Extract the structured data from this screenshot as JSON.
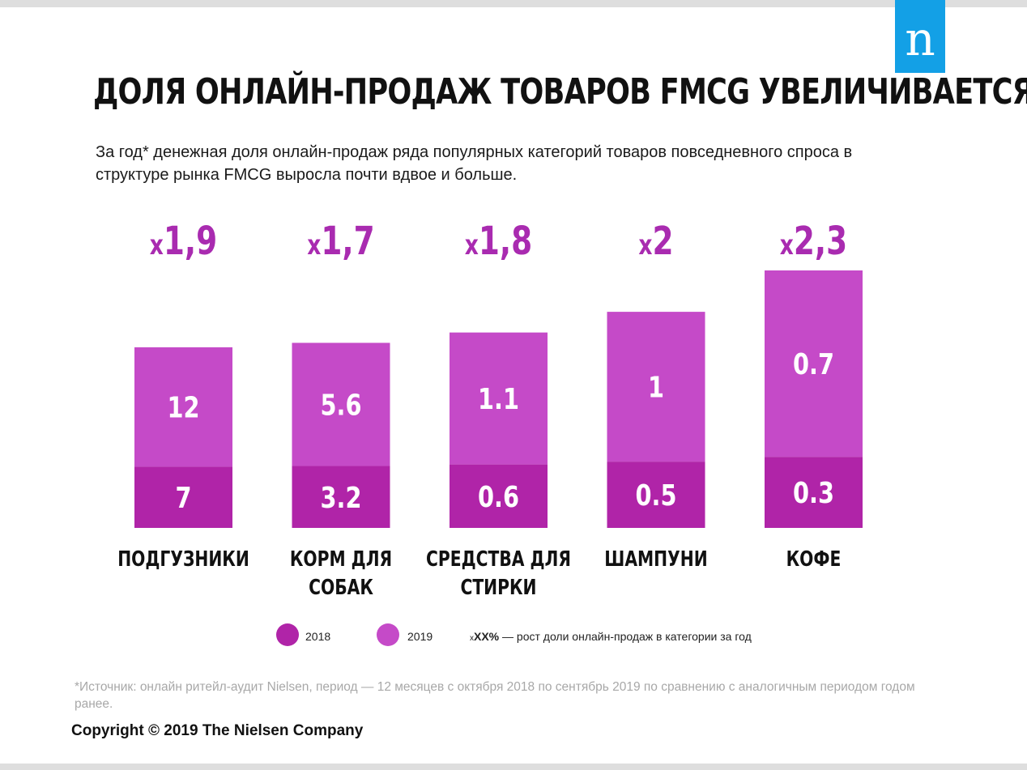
{
  "logo": {
    "letter": "n"
  },
  "header": {
    "title": "ДОЛЯ ОНЛАЙН-ПРОДАЖ ТОВАРОВ FMCG УВЕЛИЧИВАЕТСЯ",
    "subtitle": "За год* денежная доля онлайн-продаж ряда популярных категорий товаров повседневного спроса в структуре рынка FMCG выросла почти вдвое и больше."
  },
  "colors": {
    "y2018": "#b024a8",
    "y2019": "#c54ac8",
    "accent": "#a92bb0",
    "logo": "#13a0e6"
  },
  "chart_data": {
    "type": "bar",
    "stacked": true,
    "categories": [
      [
        "ПОДГУЗНИКИ"
      ],
      [
        "КОРМ ДЛЯ",
        "СОБАК"
      ],
      [
        "СРЕДСТВА ДЛЯ",
        "СТИРКИ"
      ],
      [
        "ШАМПУНИ"
      ],
      [
        "КОФЕ"
      ]
    ],
    "series": [
      {
        "name": "2018",
        "values": [
          7,
          3.2,
          0.6,
          0.5,
          0.3
        ],
        "labels": [
          "7",
          "3.2",
          "0.6",
          "0.5",
          "0.3"
        ]
      },
      {
        "name": "2019",
        "values": [
          12,
          5.6,
          1.1,
          1,
          0.7
        ],
        "labels": [
          "12",
          "5.6",
          "1.1",
          "1",
          "0.7"
        ]
      }
    ],
    "growth": [
      "1,9",
      "1,7",
      "1,8",
      "2",
      "2,3"
    ],
    "growth_prefix": "x",
    "axes": "none",
    "grid": false,
    "legend": "bottom"
  },
  "legend": {
    "note_prefix": "x",
    "note_bold": "XX%",
    "note_text": " — рост доли онлайн-продаж в категории за год"
  },
  "footer": {
    "source": "*Источник: онлайн ритейл-аудит Nielsen, период — 12 месяцев с октября 2018 по сентябрь 2019 по сравнению с аналогичным периодом годом ранее.",
    "copyright": "Copyright © 2019 The Nielsen Company"
  }
}
